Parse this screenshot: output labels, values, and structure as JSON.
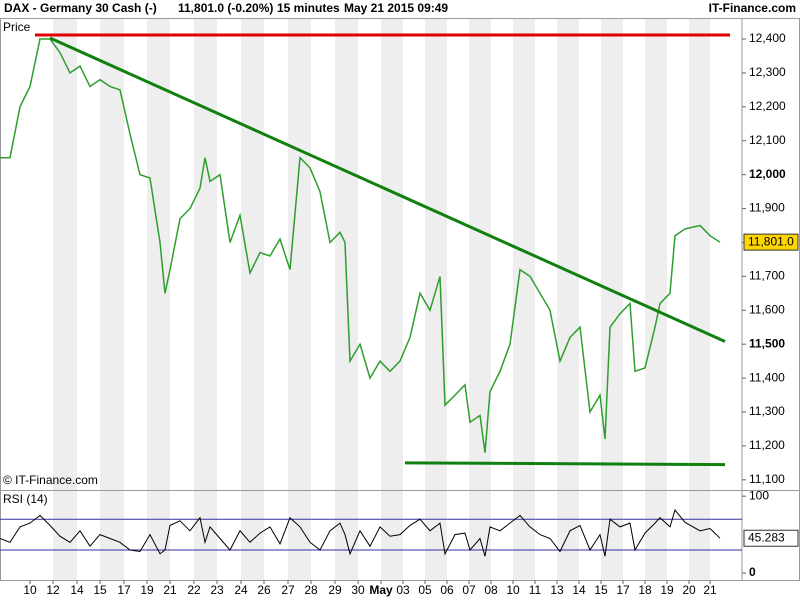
{
  "header": {
    "instrument": "DAX - Germany 30 Cash (-)",
    "quote": "11,801.0 (-0.20%)",
    "interval": "15 minutes",
    "timestamp": "May 21 2015 09:49",
    "brand": "IT-Finance.com"
  },
  "chart_data": [
    {
      "type": "line",
      "title": "Price",
      "watermark": "© IT-Finance.com",
      "color": "#2e9e2e",
      "x": [
        0,
        10,
        20,
        30,
        40,
        50,
        60,
        70,
        80,
        90,
        100,
        110,
        120,
        130,
        140,
        150,
        160,
        165,
        170,
        180,
        190,
        200,
        205,
        210,
        220,
        230,
        240,
        250,
        260,
        270,
        280,
        290,
        300,
        310,
        320,
        330,
        340,
        345,
        350,
        360,
        370,
        380,
        390,
        400,
        410,
        420,
        430,
        440,
        445,
        455,
        465,
        470,
        480,
        485,
        490,
        500,
        510,
        520,
        530,
        540,
        550,
        560,
        570,
        580,
        590,
        600,
        605,
        610,
        620,
        630,
        635,
        645,
        655,
        660,
        670,
        675,
        685,
        700,
        710,
        720
      ],
      "values": [
        12050,
        12050,
        12200,
        12260,
        12400,
        12400,
        12360,
        12300,
        12320,
        12260,
        12280,
        12260,
        12250,
        12120,
        12000,
        11990,
        11800,
        11650,
        11720,
        11870,
        11900,
        11960,
        12050,
        11980,
        12000,
        11800,
        11880,
        11710,
        11770,
        11760,
        11810,
        11720,
        12050,
        12020,
        11950,
        11800,
        11830,
        11800,
        11450,
        11500,
        11400,
        11450,
        11420,
        11450,
        11520,
        11650,
        11600,
        11700,
        11320,
        11350,
        11380,
        11270,
        11290,
        11180,
        11360,
        11420,
        11500,
        11720,
        11700,
        11650,
        11600,
        11450,
        11520,
        11550,
        11300,
        11350,
        11220,
        11550,
        11590,
        11620,
        11420,
        11430,
        11550,
        11620,
        11650,
        11820,
        11840,
        11850,
        11820,
        11801
      ],
      "last_value": {
        "value": 11801.0,
        "label": "11,801.0"
      },
      "xlim": [
        0,
        742
      ],
      "ylim": [
        11070,
        12462
      ],
      "yticks": [
        {
          "value": 11100,
          "label": "11,100"
        },
        {
          "value": 11200,
          "label": "11,200"
        },
        {
          "value": 11300,
          "label": "11,300"
        },
        {
          "value": 11400,
          "label": "11,400"
        },
        {
          "value": 11500,
          "label": "11,500"
        },
        {
          "value": 11600,
          "label": "11,600"
        },
        {
          "value": 11700,
          "label": "11,700"
        },
        {
          "value": 11800,
          "label": "11,800"
        },
        {
          "value": 11900,
          "label": "11,900"
        },
        {
          "value": 12000,
          "label": "12,000"
        },
        {
          "value": 12100,
          "label": "12,100"
        },
        {
          "value": 12200,
          "label": "12,200"
        },
        {
          "value": 12300,
          "label": "12,300"
        },
        {
          "value": 12400,
          "label": "12,400"
        }
      ],
      "xticks": [
        {
          "value": 30,
          "label": "10"
        },
        {
          "value": 53,
          "label": "12"
        },
        {
          "value": 77,
          "label": "14"
        },
        {
          "value": 100,
          "label": "15"
        },
        {
          "value": 124,
          "label": "17"
        },
        {
          "value": 147,
          "label": "19"
        },
        {
          "value": 170,
          "label": "21"
        },
        {
          "value": 194,
          "label": "22"
        },
        {
          "value": 217,
          "label": "23"
        },
        {
          "value": 241,
          "label": "24"
        },
        {
          "value": 264,
          "label": "26"
        },
        {
          "value": 288,
          "label": "27"
        },
        {
          "value": 311,
          "label": "28"
        },
        {
          "value": 335,
          "label": "29"
        },
        {
          "value": 358,
          "label": "30"
        },
        {
          "value": 381,
          "label": "May"
        },
        {
          "value": 403,
          "label": "03"
        },
        {
          "value": 425,
          "label": "05"
        },
        {
          "value": 447,
          "label": "06"
        },
        {
          "value": 469,
          "label": "07"
        },
        {
          "value": 491,
          "label": "08"
        },
        {
          "value": 513,
          "label": "10"
        },
        {
          "value": 535,
          "label": "11"
        },
        {
          "value": 557,
          "label": "13"
        },
        {
          "value": 579,
          "label": "14"
        },
        {
          "value": 601,
          "label": "15"
        },
        {
          "value": 623,
          "label": "17"
        },
        {
          "value": 645,
          "label": "18"
        },
        {
          "value": 667,
          "label": "19"
        },
        {
          "value": 689,
          "label": "20"
        },
        {
          "value": 710,
          "label": "21"
        }
      ],
      "trendlines": [
        {
          "x": [
            35,
            730
          ],
          "y": [
            12412,
            12412
          ],
          "color": "#e00000"
        },
        {
          "x": [
            50,
            725
          ],
          "y": [
            12403,
            11508
          ],
          "color": "#108010"
        },
        {
          "x": [
            405,
            725
          ],
          "y": [
            11150,
            11145
          ],
          "color": "#108010"
        }
      ]
    },
    {
      "type": "line",
      "title": "RSI (14)",
      "color": "#000000",
      "x": [
        0,
        10,
        20,
        30,
        40,
        50,
        60,
        70,
        80,
        90,
        100,
        110,
        120,
        130,
        140,
        150,
        160,
        165,
        170,
        180,
        190,
        200,
        205,
        210,
        220,
        230,
        240,
        250,
        260,
        270,
        280,
        290,
        300,
        310,
        320,
        330,
        340,
        345,
        350,
        360,
        370,
        380,
        390,
        400,
        410,
        420,
        430,
        440,
        445,
        455,
        465,
        470,
        480,
        485,
        490,
        500,
        510,
        520,
        530,
        540,
        550,
        560,
        570,
        580,
        590,
        600,
        605,
        610,
        620,
        630,
        635,
        645,
        655,
        660,
        670,
        675,
        685,
        700,
        710,
        720
      ],
      "values": [
        45,
        40,
        60,
        65,
        75,
        62,
        48,
        40,
        55,
        35,
        50,
        45,
        40,
        30,
        28,
        50,
        25,
        30,
        62,
        68,
        55,
        72,
        40,
        60,
        45,
        30,
        55,
        40,
        52,
        60,
        38,
        72,
        60,
        40,
        30,
        55,
        65,
        50,
        25,
        55,
        35,
        60,
        48,
        50,
        62,
        70,
        55,
        65,
        25,
        50,
        52,
        30,
        45,
        22,
        60,
        55,
        65,
        75,
        60,
        50,
        45,
        28,
        55,
        62,
        30,
        50,
        22,
        70,
        60,
        65,
        30,
        52,
        65,
        72,
        60,
        82,
        66,
        55,
        58,
        45.283
      ],
      "last_value": 45.283,
      "xlim": [
        0,
        742
      ],
      "ylim": [
        -9,
        108
      ],
      "yticks": [
        0,
        100
      ],
      "levels": [
        30,
        70
      ],
      "level_color": "#3030a0"
    }
  ]
}
